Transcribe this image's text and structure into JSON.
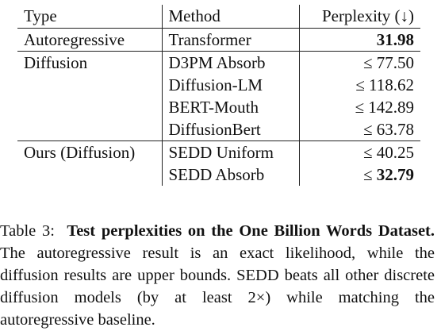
{
  "table": {
    "headers": {
      "type": "Type",
      "method": "Method",
      "perplexity": "Perplexity (↓)"
    },
    "rows": [
      {
        "type": "Autoregressive",
        "method": "Transformer",
        "perplexity": "31.98",
        "bold": true
      },
      {
        "type": "Diffusion",
        "method": "D3PM Absorb",
        "perplexity": "≤ 77.50"
      },
      {
        "type": "",
        "method": "Diffusion-LM",
        "perplexity": "≤ 118.62"
      },
      {
        "type": "",
        "method": "BERT-Mouth",
        "perplexity": "≤ 142.89"
      },
      {
        "type": "",
        "method": "DiffusionBert",
        "perplexity": "≤ 63.78"
      },
      {
        "type": "Ours (Diffusion)",
        "method": "SEDD Uniform",
        "perplexity": "≤ 40.25"
      },
      {
        "type": "",
        "method": "SEDD Absorb",
        "perplexity_prefix": "≤ ",
        "perplexity_bold": "32.79"
      }
    ]
  },
  "caption": {
    "label": "Table 3:",
    "title": "Test perplexities on the One Billion Words Dataset.",
    "body": "The autoregressive result is an exact likelihood, while the diffusion results are upper bounds. SEDD beats all other discrete diffusion models (by at least 2×) while matching the autoregressive baseline."
  }
}
